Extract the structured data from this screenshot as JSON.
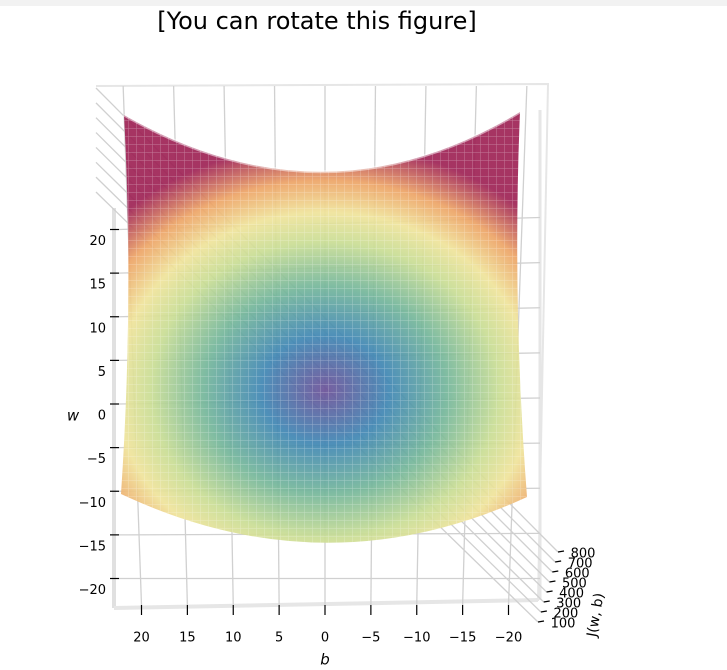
{
  "chart_data": {
    "type": "surface",
    "title": "[You can rotate this figure]",
    "x_label": "b",
    "y_label": "w",
    "z_label": "J(w, b)",
    "xlim": [
      -20,
      20
    ],
    "xticks": [
      20,
      15,
      10,
      5,
      0,
      {
        "value": -5,
        "label": "−5"
      },
      {
        "value": -10,
        "label": "−10"
      },
      {
        "value": -15,
        "label": "−15"
      },
      {
        "value": -20,
        "label": "−20"
      }
    ],
    "ylim": [
      -20,
      20
    ],
    "yticks": [
      20,
      15,
      10,
      5,
      0,
      {
        "value": -5,
        "label": "−5"
      },
      {
        "value": -10,
        "label": "−10"
      },
      {
        "value": -15,
        "label": "−15"
      },
      {
        "value": -20,
        "label": "−20"
      }
    ],
    "zlim": [
      100,
      800
    ],
    "zticks": [
      800,
      700,
      600,
      500,
      400,
      300,
      200,
      100
    ],
    "colormap": "Spectral_r",
    "grid": true
  }
}
